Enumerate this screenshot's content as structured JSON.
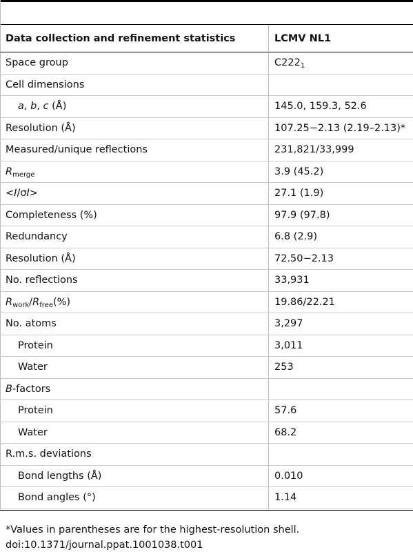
{
  "table": {
    "header": [
      "Data collection and refinement statistics",
      "LCMV NL1"
    ],
    "rows": [
      {
        "label": [
          "Space group"
        ],
        "value": [
          "C222",
          {
            "sub": "1"
          }
        ]
      },
      {
        "label": [
          "Cell dimensions"
        ]
      },
      {
        "indent": true,
        "label": [
          {
            "i": "a"
          },
          ", ",
          {
            "i": "b"
          },
          ", ",
          {
            "i": "c"
          },
          " (Å)"
        ],
        "value": [
          "145.0, 159.3, 52.6"
        ]
      },
      {
        "label": [
          "Resolution (Å)"
        ],
        "value": [
          "107.25−2.13 (2.19–2.13)*"
        ]
      },
      {
        "label": [
          "Measured/unique reflections"
        ],
        "value": [
          "231,821/33,999"
        ]
      },
      {
        "label": [
          {
            "i": "R"
          },
          {
            "sub": "merge"
          }
        ],
        "value": [
          "3.9 (45.2)"
        ]
      },
      {
        "label": [
          "<",
          {
            "i": "I"
          },
          "/σ",
          {
            "i": "I"
          },
          ">"
        ],
        "value": [
          "27.1 (1.9)"
        ]
      },
      {
        "label": [
          "Completeness (%)"
        ],
        "value": [
          "97.9 (97.8)"
        ]
      },
      {
        "label": [
          "Redundancy"
        ],
        "value": [
          "6.8 (2.9)"
        ]
      },
      {
        "label": [
          "Resolution (Å)"
        ],
        "value": [
          "72.50−2.13"
        ]
      },
      {
        "label": [
          "No. reflections"
        ],
        "value": [
          "33,931"
        ]
      },
      {
        "label": [
          {
            "i": "R"
          },
          {
            "sub": "work"
          },
          "/",
          {
            "i": "R"
          },
          {
            "sub": "free"
          },
          "(%)"
        ],
        "value": [
          "19.86/22.21"
        ]
      },
      {
        "label": [
          "No. atoms"
        ],
        "value": [
          "3,297"
        ]
      },
      {
        "indent": true,
        "label": [
          "Protein"
        ],
        "value": [
          "3,011"
        ]
      },
      {
        "indent": true,
        "label": [
          "Water"
        ],
        "value": [
          "253"
        ]
      },
      {
        "label": [
          {
            "i": "B"
          },
          "-factors"
        ]
      },
      {
        "indent": true,
        "label": [
          "Protein"
        ],
        "value": [
          "57.6"
        ]
      },
      {
        "indent": true,
        "label": [
          "Water"
        ],
        "value": [
          "68.2"
        ]
      },
      {
        "label": [
          "R.m.s. deviations"
        ]
      },
      {
        "indent": true,
        "label": [
          "Bond lengths (Å)"
        ],
        "value": [
          "0.010"
        ]
      },
      {
        "indent": true,
        "label": [
          "Bond angles (°)"
        ],
        "value": [
          "1.14"
        ]
      }
    ],
    "footnote": "*Values in parentheses are for the highest-resolution shell.",
    "doi": "doi:10.1371/journal.ppat.1001038.t001"
  }
}
